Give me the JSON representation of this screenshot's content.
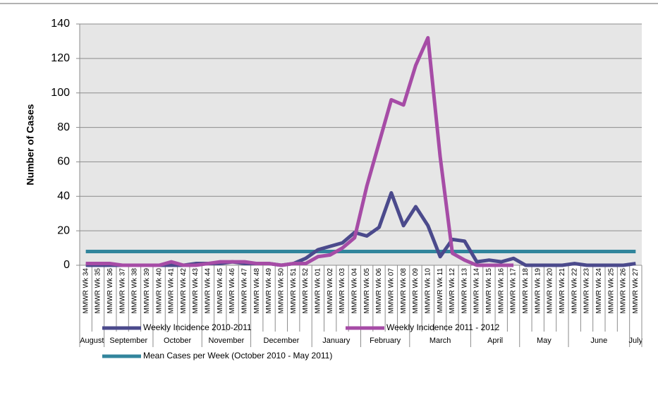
{
  "chart_data": {
    "type": "line",
    "y_label": "Number of Cases",
    "categories": [
      "MMWR Wk 34",
      "MMWR Wk 35",
      "MMWR Wk 36",
      "MMWR Wk 37",
      "MMWR Wk 38",
      "MMWR Wk 39",
      "MMWR Wk 40",
      "MMWR Wk 41",
      "MMWR Wk 42",
      "MMWR Wk 43",
      "MMWR Wk 44",
      "MMWR Wk 45",
      "MMWR Wk 46",
      "MMWR Wk 47",
      "MMWR Wk 48",
      "MMWR Wk 49",
      "MMWR Wk 50",
      "MMWR Wk 51",
      "MMWR Wk 52",
      "MMWR Wk 01",
      "MMWR Wk 02",
      "MMWR Wk 03",
      "MMWR Wk 04",
      "MMWR Wk 05",
      "MMWR Wk 06",
      "MMWR Wk 07",
      "MMWR Wk 08",
      "MMWR Wk 09",
      "MMWR Wk 10",
      "MMWR Wk 11",
      "MMWR Wk 12",
      "MMWR Wk 13",
      "MMWR Wk 14",
      "MMWR Wk 15",
      "MMWR Wk 16",
      "MMWR Wk 17",
      "MMWR Wk 18",
      "MMWR Wk 19",
      "MMWR Wk 20",
      "MMWR Wk 21",
      "MMWR Wk 22",
      "MMWR Wk 23",
      "MMWR Wk 24",
      "MMWR Wk 25",
      "MMWR Wk 26",
      "MMWR Wk 27"
    ],
    "month_groups": [
      {
        "label": "August",
        "count": 2
      },
      {
        "label": "September",
        "count": 4
      },
      {
        "label": "October",
        "count": 4
      },
      {
        "label": "November",
        "count": 4
      },
      {
        "label": "December",
        "count": 5
      },
      {
        "label": "January",
        "count": 4
      },
      {
        "label": "February",
        "count": 4
      },
      {
        "label": "March",
        "count": 5
      },
      {
        "label": "April",
        "count": 4
      },
      {
        "label": "May",
        "count": 4
      },
      {
        "label": "June",
        "count": 5
      },
      {
        "label": "July",
        "count": 1
      }
    ],
    "series": [
      {
        "name": "Weekly Incidence 2010-2011",
        "color": "#4b4a8c",
        "values": [
          0,
          0,
          0,
          0,
          0,
          0,
          0,
          0,
          0,
          1,
          1,
          1,
          2,
          1,
          1,
          1,
          0,
          1,
          4,
          9,
          11,
          13,
          19,
          17,
          22,
          42,
          23,
          34,
          23,
          5,
          15,
          14,
          2,
          3,
          2,
          4,
          0,
          0,
          0,
          0,
          1,
          0,
          0,
          0,
          0,
          1
        ]
      },
      {
        "name": "Weekly Incidence 2011 - 2012",
        "color": "#a64ca6",
        "values": [
          1,
          1,
          1,
          0,
          0,
          0,
          0,
          2,
          0,
          0,
          1,
          2,
          2,
          2,
          1,
          1,
          0,
          1,
          1,
          5,
          6,
          10,
          16,
          46,
          71,
          96,
          93,
          116,
          132,
          63,
          7,
          3,
          0,
          0,
          0,
          0,
          null,
          null,
          null,
          null,
          null,
          null,
          null,
          null,
          null,
          null
        ]
      },
      {
        "name": "Mean Cases per Week (October 2010 - May 2011)",
        "color": "#31859c",
        "values": [
          8,
          8,
          8,
          8,
          8,
          8,
          8,
          8,
          8,
          8,
          8,
          8,
          8,
          8,
          8,
          8,
          8,
          8,
          8,
          8,
          8,
          8,
          8,
          8,
          8,
          8,
          8,
          8,
          8,
          8,
          8,
          8,
          8,
          8,
          8,
          8,
          8,
          8,
          8,
          8,
          8,
          8,
          8,
          8,
          8,
          8
        ]
      }
    ],
    "ylim": [
      0,
      140
    ],
    "yticks": [
      0,
      20,
      40,
      60,
      80,
      100,
      120,
      140
    ],
    "grid": true,
    "legend": "bottom"
  }
}
